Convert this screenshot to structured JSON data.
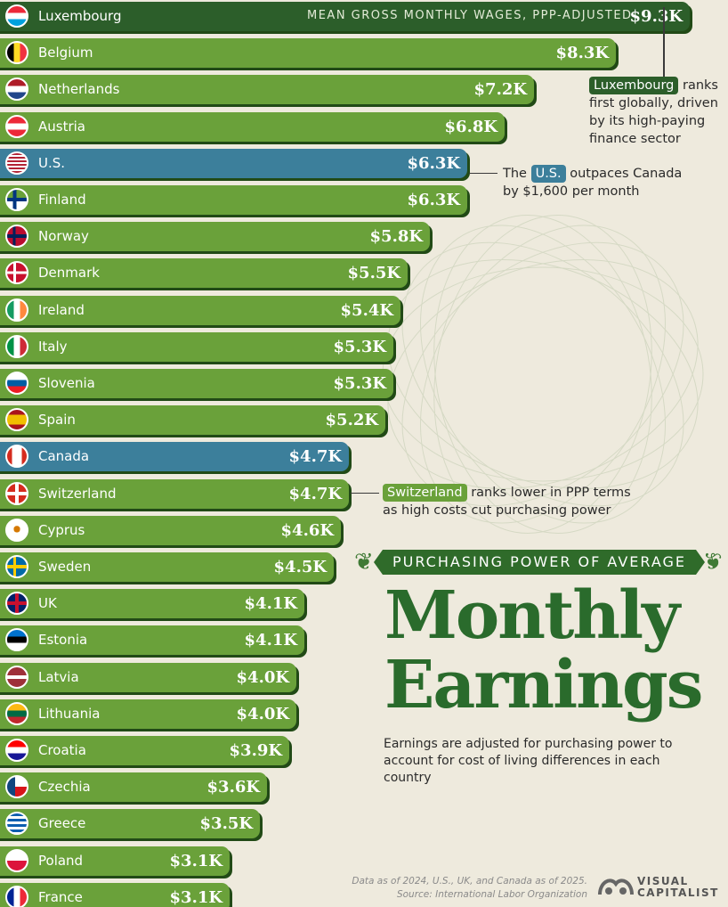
{
  "chart_data": {
    "type": "bar",
    "orientation": "horizontal",
    "title": "Monthly Earnings",
    "kicker": "PURCHASING POWER OF AVERAGE",
    "value_caption": "MEAN GROSS MONTHLY WAGES, PPP-ADJUSTED",
    "subtitle": "Earnings are adjusted for purchasing power to account for cost of living differences in each country",
    "xlim": [
      0,
      9.3
    ],
    "bars": [
      {
        "label": "Luxembourg",
        "value": 9.3,
        "display": "$9.3K",
        "highlight": "dark",
        "flag": "luxembourg-flag-icon"
      },
      {
        "label": "Belgium",
        "value": 8.3,
        "display": "$8.3K",
        "highlight": "none",
        "flag": "belgium-flag-icon"
      },
      {
        "label": "Netherlands",
        "value": 7.2,
        "display": "$7.2K",
        "highlight": "none",
        "flag": "netherlands-flag-icon"
      },
      {
        "label": "Austria",
        "value": 6.8,
        "display": "$6.8K",
        "highlight": "none",
        "flag": "austria-flag-icon"
      },
      {
        "label": "U.S.",
        "value": 6.3,
        "display": "$6.3K",
        "highlight": "blue",
        "flag": "us-flag-icon"
      },
      {
        "label": "Finland",
        "value": 6.3,
        "display": "$6.3K",
        "highlight": "none",
        "flag": "finland-flag-icon"
      },
      {
        "label": "Norway",
        "value": 5.8,
        "display": "$5.8K",
        "highlight": "none",
        "flag": "norway-flag-icon"
      },
      {
        "label": "Denmark",
        "value": 5.5,
        "display": "$5.5K",
        "highlight": "none",
        "flag": "denmark-flag-icon"
      },
      {
        "label": "Ireland",
        "value": 5.4,
        "display": "$5.4K",
        "highlight": "none",
        "flag": "ireland-flag-icon"
      },
      {
        "label": "Italy",
        "value": 5.3,
        "display": "$5.3K",
        "highlight": "none",
        "flag": "italy-flag-icon"
      },
      {
        "label": "Slovenia",
        "value": 5.3,
        "display": "$5.3K",
        "highlight": "none",
        "flag": "slovenia-flag-icon"
      },
      {
        "label": "Spain",
        "value": 5.2,
        "display": "$5.2K",
        "highlight": "none",
        "flag": "spain-flag-icon"
      },
      {
        "label": "Canada",
        "value": 4.7,
        "display": "$4.7K",
        "highlight": "blue",
        "flag": "canada-flag-icon"
      },
      {
        "label": "Switzerland",
        "value": 4.7,
        "display": "$4.7K",
        "highlight": "none",
        "flag": "switzerland-flag-icon"
      },
      {
        "label": "Cyprus",
        "value": 4.6,
        "display": "$4.6K",
        "highlight": "none",
        "flag": "cyprus-flag-icon"
      },
      {
        "label": "Sweden",
        "value": 4.5,
        "display": "$4.5K",
        "highlight": "none",
        "flag": "sweden-flag-icon"
      },
      {
        "label": "UK",
        "value": 4.1,
        "display": "$4.1K",
        "highlight": "none",
        "flag": "uk-flag-icon"
      },
      {
        "label": "Estonia",
        "value": 4.1,
        "display": "$4.1K",
        "highlight": "none",
        "flag": "estonia-flag-icon"
      },
      {
        "label": "Latvia",
        "value": 4.0,
        "display": "$4.0K",
        "highlight": "none",
        "flag": "latvia-flag-icon"
      },
      {
        "label": "Lithuania",
        "value": 4.0,
        "display": "$4.0K",
        "highlight": "none",
        "flag": "lithuania-flag-icon"
      },
      {
        "label": "Croatia",
        "value": 3.9,
        "display": "$3.9K",
        "highlight": "none",
        "flag": "croatia-flag-icon"
      },
      {
        "label": "Czechia",
        "value": 3.6,
        "display": "$3.6K",
        "highlight": "none",
        "flag": "czechia-flag-icon"
      },
      {
        "label": "Greece",
        "value": 3.5,
        "display": "$3.5K",
        "highlight": "none",
        "flag": "greece-flag-icon"
      },
      {
        "label": "Poland",
        "value": 3.1,
        "display": "$3.1K",
        "highlight": "none",
        "flag": "poland-flag-icon"
      },
      {
        "label": "France",
        "value": 3.1,
        "display": "$3.1K",
        "highlight": "none",
        "flag": "france-flag-icon"
      }
    ],
    "annotations": [
      {
        "highlight": "Luxembourg",
        "text_line1": " ranks",
        "text_rest": [
          "first globally, driven",
          "by its high-paying",
          "finance sector"
        ]
      },
      {
        "prefix": "The ",
        "highlight": "U.S.",
        "text_line1": " outpaces Canada",
        "text_rest": [
          "by $1,600 per month"
        ]
      },
      {
        "highlight": "Switzerland",
        "text_line1": " ranks lower in PPP terms",
        "text_rest": [
          "as high costs cut purchasing power"
        ]
      }
    ]
  },
  "title_line1": "Monthly",
  "title_line2": "Earnings",
  "footnote_line1": "Data as of 2024, U.S., UK, and Canada as of 2025.",
  "footnote_line2": "Source: International Labor Organization",
  "brand_line1": "VISUAL",
  "brand_line2": "CAPITALIST",
  "colors": {
    "bar_green": "#6aa13a",
    "bar_dark_green": "#2c5e2a",
    "bar_blue": "#3c7f9b",
    "background": "#eeeadd",
    "title_green": "#2a6b2c"
  }
}
